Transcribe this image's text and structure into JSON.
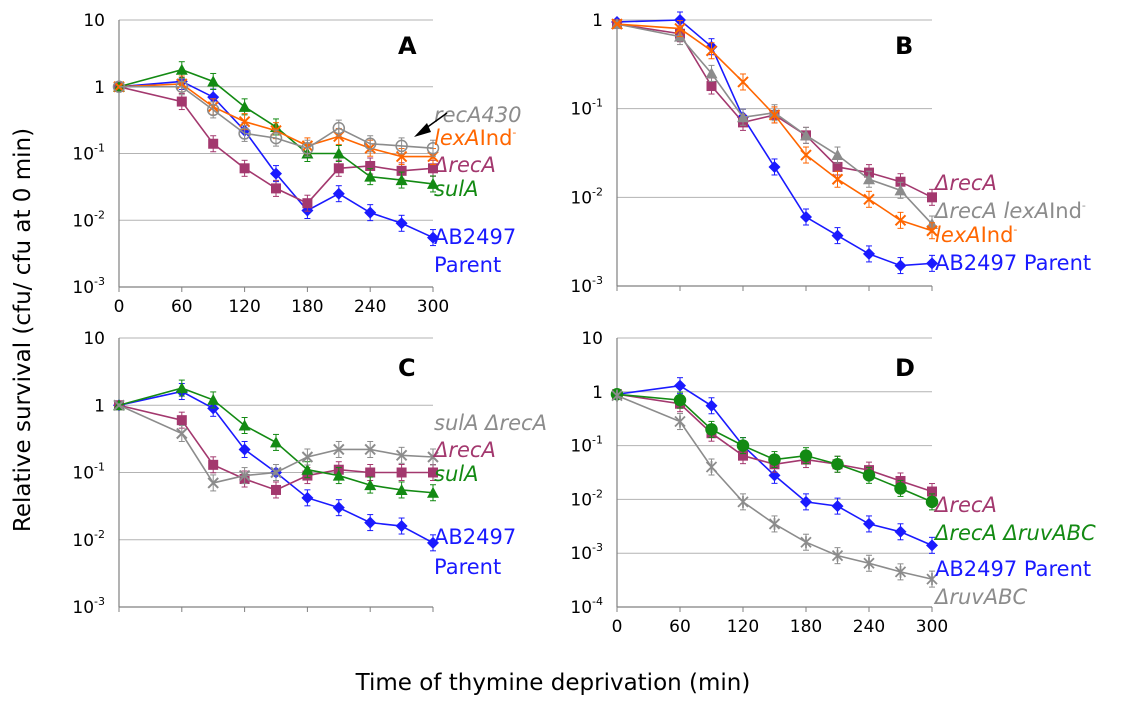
{
  "colors": {
    "blue": "#1a1aff",
    "purple": "#a3386e",
    "green": "#138a13",
    "orange": "#ff6600",
    "gray": "#8c8c8c",
    "grid": "#b3b3b3",
    "axis": "#808080"
  },
  "labels": {
    "ylabel": "Relative survival (cfu/ cfu at 0 min)",
    "xlabel": "Time of thymine deprivation (min)"
  },
  "chart_data": [
    {
      "panel": "A",
      "type": "line",
      "yscale": "log",
      "ylim": [
        0.001,
        10
      ],
      "xlim": [
        0,
        300
      ],
      "x": [
        0,
        60,
        90,
        120,
        150,
        180,
        210,
        240,
        270,
        300
      ],
      "xticks": [
        "0",
        "60",
        "120",
        "180",
        "240",
        "300"
      ],
      "yticks": [
        {
          "base": "10",
          "exp": ""
        },
        {
          "base": "1",
          "exp": ""
        },
        {
          "base": "10",
          "exp": "-1"
        },
        {
          "base": "10",
          "exp": "-2"
        },
        {
          "base": "10",
          "exp": "-3"
        }
      ],
      "series": [
        {
          "name": "AB2497 Parent",
          "color": "blue",
          "marker": "diamond",
          "values": [
            1.0,
            1.2,
            0.7,
            0.22,
            0.05,
            0.014,
            0.025,
            0.013,
            0.009,
            0.0055
          ]
        },
        {
          "name": "ΔrecA",
          "color": "purple",
          "marker": "square",
          "values": [
            1.0,
            0.6,
            0.14,
            0.06,
            0.03,
            0.018,
            0.06,
            0.065,
            0.055,
            0.06
          ]
        },
        {
          "name": "sulA",
          "color": "green",
          "marker": "triangle",
          "values": [
            1.0,
            1.8,
            1.2,
            0.5,
            0.25,
            0.1,
            0.1,
            0.045,
            0.04,
            0.035
          ]
        },
        {
          "name": "lexAInd-",
          "color": "orange",
          "marker": "x",
          "values": [
            1.0,
            1.1,
            0.5,
            0.3,
            0.22,
            0.13,
            0.18,
            0.12,
            0.09,
            0.09
          ]
        },
        {
          "name": "recA430",
          "color": "gray",
          "marker": "circle",
          "values": [
            1.0,
            1.0,
            0.45,
            0.2,
            0.17,
            0.12,
            0.24,
            0.14,
            0.13,
            0.12
          ]
        }
      ],
      "legend": [
        {
          "text": "recA430",
          "color": "gray",
          "italic": true
        },
        {
          "text": "lexA",
          "suffix": "Ind",
          "sup": "-",
          "color": "orange",
          "italic": true
        },
        {
          "text": "ΔrecA",
          "color": "purple",
          "italic": true
        },
        {
          "text": "sulA",
          "color": "green",
          "italic": true
        },
        {
          "text": "AB2497",
          "color": "blue",
          "italic": false
        },
        {
          "text": "Parent",
          "color": "blue",
          "italic": false
        }
      ]
    },
    {
      "panel": "B",
      "type": "line",
      "yscale": "log",
      "ylim": [
        0.001,
        1
      ],
      "xlim": [
        0,
        300
      ],
      "x": [
        0,
        60,
        90,
        120,
        150,
        180,
        210,
        240,
        270,
        300
      ],
      "xticks": [],
      "yticks": [
        {
          "base": "1",
          "exp": ""
        },
        {
          "base": "10",
          "exp": "-1"
        },
        {
          "base": "10",
          "exp": "-2"
        },
        {
          "base": "10",
          "exp": "-3"
        }
      ],
      "series": [
        {
          "name": "AB2497 Parent",
          "color": "blue",
          "marker": "diamond",
          "values": [
            0.95,
            1.0,
            0.5,
            0.08,
            0.022,
            0.006,
            0.0037,
            0.0023,
            0.0017,
            0.0018
          ]
        },
        {
          "name": "ΔrecA",
          "color": "purple",
          "marker": "square",
          "values": [
            0.9,
            0.7,
            0.18,
            0.07,
            0.085,
            0.05,
            0.022,
            0.019,
            0.015,
            0.01
          ]
        },
        {
          "name": "ΔrecA lexAInd-",
          "color": "gray",
          "marker": "triangle",
          "values": [
            0.9,
            0.65,
            0.25,
            0.08,
            0.09,
            0.05,
            0.03,
            0.016,
            0.012,
            0.005
          ]
        },
        {
          "name": "lexAInd-",
          "color": "orange",
          "marker": "x",
          "values": [
            0.9,
            0.8,
            0.45,
            0.2,
            0.085,
            0.03,
            0.016,
            0.0095,
            0.0055,
            0.0042
          ]
        }
      ],
      "legend": [
        {
          "text": "ΔrecA",
          "color": "purple",
          "italic": true
        },
        {
          "text": "ΔrecA lexA",
          "suffix": "Ind",
          "sup": "-",
          "color": "gray",
          "italic": true
        },
        {
          "text": "lexA",
          "suffix": "Ind",
          "sup": "-",
          "color": "orange",
          "italic": true
        },
        {
          "text": "AB2497 Parent",
          "color": "blue",
          "italic": false
        }
      ]
    },
    {
      "panel": "C",
      "type": "line",
      "yscale": "log",
      "ylim": [
        0.001,
        10
      ],
      "xlim": [
        0,
        300
      ],
      "x": [
        0,
        60,
        90,
        120,
        150,
        180,
        210,
        240,
        270,
        300
      ],
      "xticks": [],
      "yticks": [
        {
          "base": "10",
          "exp": ""
        },
        {
          "base": "1",
          "exp": ""
        },
        {
          "base": "10",
          "exp": "-1"
        },
        {
          "base": "10",
          "exp": "-2"
        },
        {
          "base": "10",
          "exp": "-3"
        }
      ],
      "series": [
        {
          "name": "AB2497 Parent",
          "color": "blue",
          "marker": "diamond",
          "values": [
            1.0,
            1.6,
            0.9,
            0.22,
            0.1,
            0.042,
            0.03,
            0.018,
            0.016,
            0.009
          ]
        },
        {
          "name": "ΔrecA",
          "color": "purple",
          "marker": "square",
          "values": [
            1.0,
            0.6,
            0.13,
            0.08,
            0.055,
            0.09,
            0.11,
            0.1,
            0.1,
            0.1
          ]
        },
        {
          "name": "sulA",
          "color": "green",
          "marker": "triangle",
          "values": [
            1.0,
            1.8,
            1.2,
            0.5,
            0.28,
            0.11,
            0.09,
            0.065,
            0.055,
            0.05
          ]
        },
        {
          "name": "sulA ΔrecA",
          "color": "gray",
          "marker": "x",
          "values": [
            1.0,
            0.38,
            0.07,
            0.09,
            0.1,
            0.17,
            0.22,
            0.22,
            0.18,
            0.17
          ]
        }
      ],
      "legend": [
        {
          "text": "sulA ΔrecA",
          "color": "gray",
          "italic": true
        },
        {
          "text": "ΔrecA",
          "color": "purple",
          "italic": true
        },
        {
          "text": "sulA",
          "color": "green",
          "italic": true
        },
        {
          "text": "AB2497",
          "color": "blue",
          "italic": false
        },
        {
          "text": "Parent",
          "color": "blue",
          "italic": false
        }
      ]
    },
    {
      "panel": "D",
      "type": "line",
      "yscale": "log",
      "ylim": [
        0.0001,
        10
      ],
      "xlim": [
        0,
        300
      ],
      "x": [
        0,
        60,
        90,
        120,
        150,
        180,
        210,
        240,
        270,
        300
      ],
      "xticks": [
        "0",
        "60",
        "120",
        "180",
        "240",
        "300"
      ],
      "yticks": [
        {
          "base": "10",
          "exp": ""
        },
        {
          "base": "1",
          "exp": ""
        },
        {
          "base": "10",
          "exp": "-1"
        },
        {
          "base": "10",
          "exp": "-2"
        },
        {
          "base": "10",
          "exp": "-3"
        },
        {
          "base": "10",
          "exp": "-4"
        }
      ],
      "series": [
        {
          "name": "AB2497 Parent",
          "color": "blue",
          "marker": "diamond",
          "values": [
            0.9,
            1.3,
            0.55,
            0.1,
            0.028,
            0.009,
            0.0075,
            0.0035,
            0.0025,
            0.0014
          ]
        },
        {
          "name": "ΔrecA",
          "color": "purple",
          "marker": "square",
          "values": [
            0.9,
            0.6,
            0.17,
            0.065,
            0.045,
            0.055,
            0.045,
            0.035,
            0.022,
            0.014
          ]
        },
        {
          "name": "ΔrecA ΔruvABC",
          "color": "green",
          "marker": "circle",
          "values": [
            0.9,
            0.7,
            0.2,
            0.1,
            0.055,
            0.065,
            0.045,
            0.028,
            0.016,
            0.009
          ]
        },
        {
          "name": "ΔruvABC",
          "color": "gray",
          "marker": "star",
          "values": [
            0.85,
            0.28,
            0.04,
            0.009,
            0.0035,
            0.0016,
            0.0009,
            0.00065,
            0.00045,
            0.00033
          ]
        }
      ],
      "legend": [
        {
          "text": "ΔrecA",
          "color": "purple",
          "italic": true
        },
        {
          "text": "ΔrecA ΔruvABC",
          "color": "green",
          "italic": true
        },
        {
          "text": "AB2497 Parent",
          "color": "blue",
          "italic": false
        },
        {
          "text": "ΔruvABC",
          "color": "gray",
          "italic": true
        }
      ]
    }
  ]
}
